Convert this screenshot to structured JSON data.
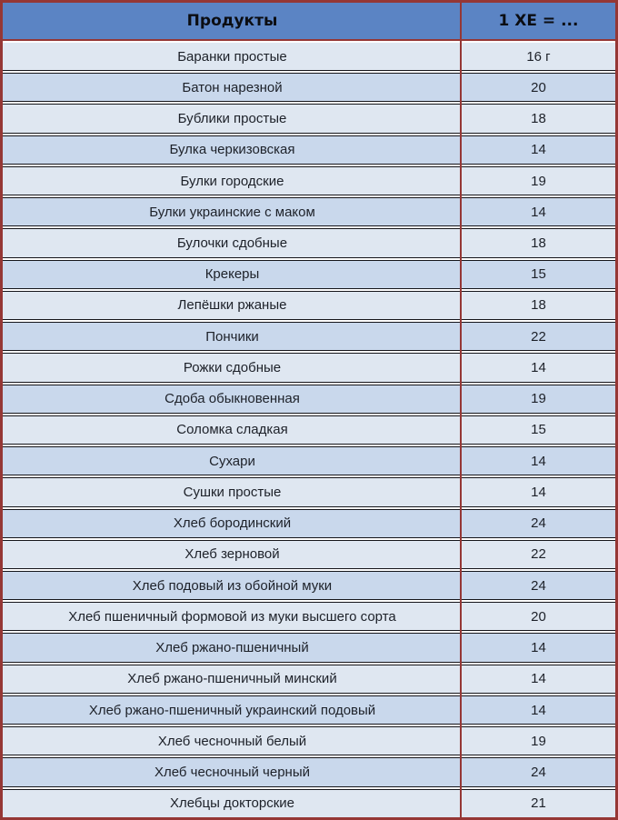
{
  "table": {
    "headers": [
      "Продукты",
      "1 ХЕ = ..."
    ],
    "rows": [
      {
        "product": "Баранки простые",
        "value": "16 г"
      },
      {
        "product": "Батон нарезной",
        "value": "20"
      },
      {
        "product": "Бублики простые",
        "value": "18"
      },
      {
        "product": "Булка черкизовская",
        "value": "14"
      },
      {
        "product": "Булки городские",
        "value": "19"
      },
      {
        "product": "Булки украинские с маком",
        "value": "14"
      },
      {
        "product": "Булочки сдобные",
        "value": "18"
      },
      {
        "product": "Крекеры",
        "value": "15"
      },
      {
        "product": "Лепёшки ржаные",
        "value": "18"
      },
      {
        "product": "Пончики",
        "value": "22"
      },
      {
        "product": "Рожки сдобные",
        "value": "14"
      },
      {
        "product": "Сдоба обыкновенная",
        "value": "19"
      },
      {
        "product": "Соломка сладкая",
        "value": "15"
      },
      {
        "product": "Сухари",
        "value": "14"
      },
      {
        "product": "Сушки простые",
        "value": "14"
      },
      {
        "product": "Хлеб бородинский",
        "value": "24"
      },
      {
        "product": "Хлеб зерновой",
        "value": "22"
      },
      {
        "product": "Хлеб подовый из обойной муки",
        "value": "24"
      },
      {
        "product": "Хлеб пшеничный формовой из муки высшего сорта",
        "value": "20"
      },
      {
        "product": "Хлеб ржано-пшеничный",
        "value": "14"
      },
      {
        "product": "Хлеб ржано-пшеничный минский",
        "value": "14"
      },
      {
        "product": "Хлеб ржано-пшеничный украинский подовый",
        "value": "14"
      },
      {
        "product": "Хлеб чесночный белый",
        "value": "19"
      },
      {
        "product": "Хлеб чесночный черный",
        "value": "24"
      },
      {
        "product": "Хлебцы докторские",
        "value": "21"
      }
    ]
  },
  "colors": {
    "header_bg": "#5b84c4",
    "row_light": "#dfe7f1",
    "row_blue": "#c9d8ec",
    "border_maroon": "#953735",
    "separator_line": "#15151a"
  }
}
